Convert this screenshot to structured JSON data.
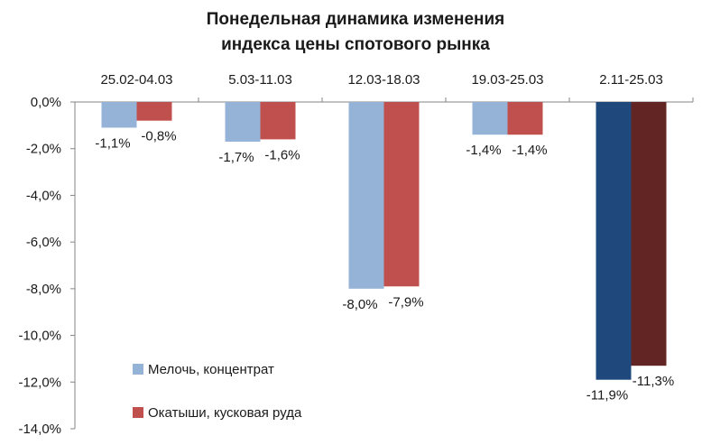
{
  "chart_data": {
    "type": "bar",
    "title_line1": "Понедельная динамика изменения",
    "title_line2": "индекса цены спотового рынка",
    "categories": [
      "25.02-04.03",
      "5.03-11.03",
      "12.03-18.03",
      "19.03-25.03",
      "2.11-25.03"
    ],
    "series": [
      {
        "name": "Мелочь, концентрат",
        "values": [
          -1.1,
          -1.7,
          -8.0,
          -1.4,
          -11.9
        ],
        "labels": [
          "-1,1%",
          "-1,7%",
          "-8,0%",
          "-1,4%",
          "-11,9%"
        ],
        "color": "#95b3d7",
        "highlight_color": "#1f497d"
      },
      {
        "name": "Окатыши, кусковая руда",
        "values": [
          -0.8,
          -1.6,
          -7.9,
          -1.4,
          -11.3
        ],
        "labels": [
          "-0,8%",
          "-1,6%",
          "-7,9%",
          "-1,4%",
          "-11,3%"
        ],
        "color": "#c0504d",
        "highlight_color": "#632523"
      }
    ],
    "highlight_category_index": 4,
    "ylim": [
      -14,
      0
    ],
    "yticks": [
      0,
      -2,
      -4,
      -6,
      -8,
      -10,
      -12,
      -14
    ],
    "ytick_labels": [
      "0,0%",
      "-2,0%",
      "-4,0%",
      "-6,0%",
      "-8,0%",
      "-10,0%",
      "-12,0%",
      "-14,0%"
    ],
    "grid": false,
    "legend_position": "bottom-left inside plot",
    "axis_color": "#868686"
  }
}
